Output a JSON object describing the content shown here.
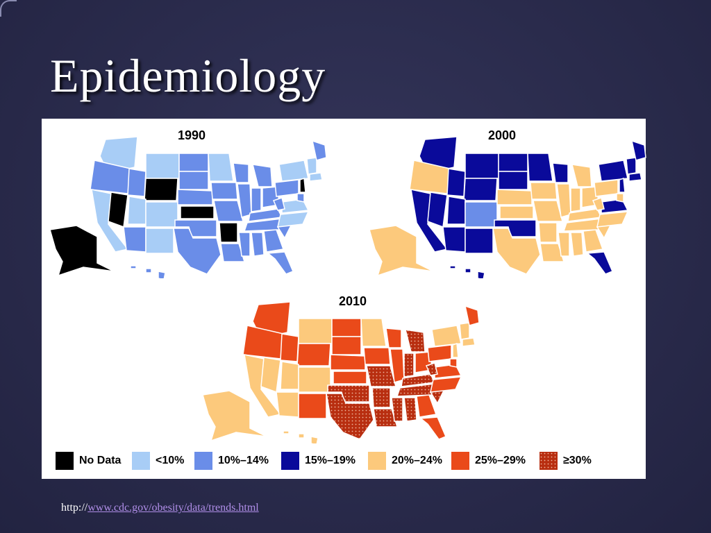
{
  "slide": {
    "title": "Epidemiology"
  },
  "maps": [
    {
      "year": "1990"
    },
    {
      "year": "2000"
    },
    {
      "year": "2010"
    }
  ],
  "legend": {
    "items": [
      {
        "label": "No Data",
        "color": "#000000"
      },
      {
        "label": "<10%",
        "color": "#a8cdf6"
      },
      {
        "label": "10%–14%",
        "color": "#6a8de8"
      },
      {
        "label": "15%–19%",
        "color": "#0a0a9a"
      },
      {
        "label": "20%–24%",
        "color": "#fcc97c"
      },
      {
        "label": "25%–29%",
        "color": "#ea4a1a"
      },
      {
        "label": "≥30%",
        "color": "#b82e10"
      }
    ]
  },
  "source": {
    "prefix": "http://",
    "link": "www.cdc.gov/obesity/data/trends.html"
  }
}
